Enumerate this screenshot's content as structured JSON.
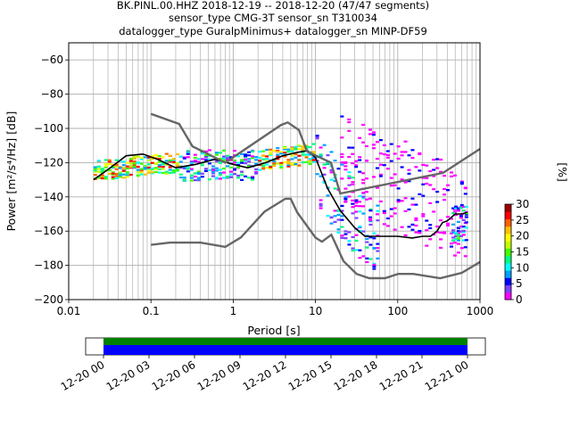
{
  "chart_data": {
    "type": "heatmap",
    "title_lines": [
      "BK.PINL.00.HHZ   2018-12-19 -- 2018-12-20  (47/47 segments)",
      "sensor_type CMG-3T sensor_sn T310034",
      "datalogger_type GuralpMinimus+ datalogger_sn MINP-DF59"
    ],
    "xlabel": "Period [s]",
    "ylabel": "Power [m²/s⁴/Hz] [dB]",
    "x_scale": "log",
    "xlim": [
      0.01,
      1000
    ],
    "ylim": [
      -200,
      -50
    ],
    "x_ticks": [
      0.01,
      0.1,
      1,
      10,
      100,
      1000
    ],
    "x_tick_labels": [
      "0.01",
      "0.1",
      "1",
      "10",
      "100",
      "1000"
    ],
    "y_ticks": [
      -200,
      -180,
      -160,
      -140,
      -120,
      -100,
      -80,
      -60
    ],
    "y_tick_labels": [
      "−200",
      "−180",
      "−160",
      "−140",
      "−120",
      "−100",
      "−80",
      "−60"
    ],
    "grid": true,
    "colorbar": {
      "label": "[%]",
      "min": 0,
      "max": 30,
      "ticks": [
        0,
        5,
        10,
        15,
        20,
        25,
        30
      ],
      "tick_labels": [
        "0",
        "5",
        "10",
        "15",
        "20",
        "25",
        "30"
      ],
      "colors": [
        "#ff00ff",
        "#8040ff",
        "#0000ff",
        "#00a0ff",
        "#00ffff",
        "#00ff80",
        "#40ff00",
        "#c0ff00",
        "#ffff00",
        "#ffc000",
        "#ff6000",
        "#ff0000",
        "#a00000"
      ]
    },
    "series": [
      {
        "kind": "mode",
        "color": "#000000",
        "x": [
          0.02,
          0.03,
          0.05,
          0.08,
          0.12,
          0.2,
          0.35,
          0.6,
          1.0,
          1.5,
          2.5,
          4,
          6,
          8,
          10,
          14,
          20,
          30,
          40,
          60,
          100,
          150,
          200,
          250,
          300,
          350,
          400,
          500,
          600,
          700
        ],
        "y": [
          -130,
          -124,
          -116,
          -115,
          -118,
          -123,
          -121,
          -118,
          -121,
          -123,
          -120,
          -116,
          -114,
          -113,
          -117,
          -135,
          -148,
          -158,
          -163,
          -163,
          -163,
          -164,
          -163,
          -163,
          -160,
          -155,
          -154,
          -150,
          -150,
          -149
        ]
      },
      {
        "kind": "noise-model-high",
        "color": "#666666",
        "x": [
          0.1,
          0.22,
          0.32,
          0.8,
          3.8,
          4.6,
          6.3,
          7.9,
          15.4,
          20,
          354.8,
          1000
        ],
        "y": [
          -91.5,
          -97.4,
          -110.5,
          -120,
          -98.0,
          -96.5,
          -101.0,
          -113.5,
          -120,
          -138,
          -126,
          -112
        ]
      },
      {
        "kind": "noise-model-low",
        "color": "#666666",
        "x": [
          0.1,
          0.17,
          0.4,
          0.8,
          1.24,
          2.4,
          4.3,
          5.0,
          6.0,
          10.0,
          12.0,
          15.6,
          21.9,
          31.6,
          45.0,
          70.0,
          101.0,
          154.0,
          328.0,
          600.0,
          1000.0
        ],
        "y": [
          -168,
          -166.7,
          -166.7,
          -169.2,
          -163.7,
          -148.6,
          -141.1,
          -141.1,
          -149.0,
          -163.8,
          -166.2,
          -162.1,
          -177.5,
          -185.0,
          -187.5,
          -187.5,
          -185.0,
          -185.0,
          -187.5,
          -184.4,
          -178.0
        ]
      }
    ],
    "density_bands": [
      {
        "x": [
          0.02,
          0.22
        ],
        "y_center": [
          -124,
          -119
        ],
        "spread": 6,
        "level": "high"
      },
      {
        "x": [
          0.22,
          2.0
        ],
        "y_center": [
          -121,
          -121
        ],
        "spread": 9,
        "level": "mid"
      },
      {
        "x": [
          2.0,
          10.0
        ],
        "y_center": [
          -118,
          -114
        ],
        "spread": 6,
        "level": "high"
      },
      {
        "x": [
          10.0,
          60.0
        ],
        "y_center": [
          -125,
          -168
        ],
        "spread": 22,
        "level": "mixed"
      },
      {
        "x": [
          20.0,
          700.0
        ],
        "y_center": [
          -120,
          -150
        ],
        "spread": 28,
        "level": "low"
      },
      {
        "x": [
          450.0,
          700.0
        ],
        "y_center": [
          -155,
          -155
        ],
        "spread": 10,
        "level": "mid"
      }
    ],
    "coverage": {
      "x_ticks": [
        "12-20 00",
        "12-20 03",
        "12-20 06",
        "12-20 09",
        "12-20 12",
        "12-20 15",
        "12-20 18",
        "12-20 21",
        "12-21 00"
      ],
      "colors": [
        "#008000",
        "#0000ff"
      ],
      "start_fraction": 0.0,
      "end_fraction": 1.0
    }
  }
}
